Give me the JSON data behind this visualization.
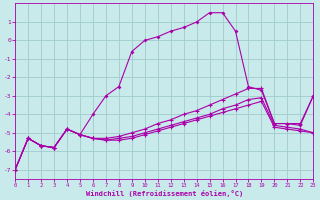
{
  "xlabel": "Windchill (Refroidissement éolien,°C)",
  "bg_color": "#c8eaea",
  "grid_color": "#a0cccc",
  "line_color": "#aa00aa",
  "xlim": [
    0,
    23
  ],
  "ylim": [
    -7.5,
    2.0
  ],
  "yticks": [
    1,
    0,
    -1,
    -2,
    -3,
    -4,
    -5,
    -6,
    -7
  ],
  "xticks": [
    0,
    1,
    2,
    3,
    4,
    5,
    6,
    7,
    8,
    9,
    10,
    11,
    12,
    13,
    14,
    15,
    16,
    17,
    18,
    19,
    20,
    21,
    22,
    23
  ],
  "line0_x": [
    0,
    1,
    2,
    3,
    4,
    5,
    6,
    7,
    8,
    9,
    10,
    11,
    12,
    13,
    14,
    15,
    16,
    17,
    18,
    19,
    20,
    21,
    22,
    23
  ],
  "line0_y": [
    -7.0,
    -5.3,
    -5.7,
    -5.8,
    -4.8,
    -5.1,
    -4.0,
    -3.0,
    -2.5,
    -0.6,
    0.0,
    0.2,
    0.5,
    0.7,
    1.0,
    1.5,
    1.5,
    0.5,
    -2.5,
    -2.7,
    -4.5,
    -4.5,
    -4.6,
    -3.0
  ],
  "line1_x": [
    0,
    1,
    2,
    3,
    4,
    5,
    6,
    7,
    8,
    9,
    10,
    11,
    12,
    13,
    14,
    15,
    16,
    17,
    18,
    19,
    20,
    21,
    22,
    23
  ],
  "line1_y": [
    -7.0,
    -5.3,
    -5.7,
    -5.8,
    -4.8,
    -5.1,
    -5.3,
    -5.3,
    -5.2,
    -5.0,
    -4.8,
    -4.5,
    -4.3,
    -4.0,
    -3.8,
    -3.5,
    -3.2,
    -2.9,
    -2.6,
    -2.6,
    -4.5,
    -4.5,
    -4.5,
    -3.0
  ],
  "line2_x": [
    0,
    1,
    2,
    3,
    4,
    5,
    6,
    7,
    8,
    9,
    10,
    11,
    12,
    13,
    14,
    15,
    16,
    17,
    18,
    19,
    20,
    21,
    22,
    23
  ],
  "line2_y": [
    -7.0,
    -5.3,
    -5.7,
    -5.8,
    -4.8,
    -5.1,
    -5.3,
    -5.4,
    -5.3,
    -5.2,
    -5.0,
    -4.8,
    -4.6,
    -4.4,
    -4.2,
    -4.0,
    -3.7,
    -3.5,
    -3.2,
    -3.1,
    -4.6,
    -4.7,
    -4.8,
    -5.0
  ],
  "line3_x": [
    0,
    1,
    2,
    3,
    4,
    5,
    6,
    7,
    8,
    9,
    10,
    11,
    12,
    13,
    14,
    15,
    16,
    17,
    18,
    19,
    20,
    21,
    22,
    23
  ],
  "line3_y": [
    -7.0,
    -5.3,
    -5.7,
    -5.8,
    -4.8,
    -5.1,
    -5.3,
    -5.4,
    -5.4,
    -5.3,
    -5.1,
    -4.9,
    -4.7,
    -4.5,
    -4.3,
    -4.1,
    -3.9,
    -3.7,
    -3.5,
    -3.3,
    -4.7,
    -4.8,
    -4.9,
    -5.0
  ]
}
